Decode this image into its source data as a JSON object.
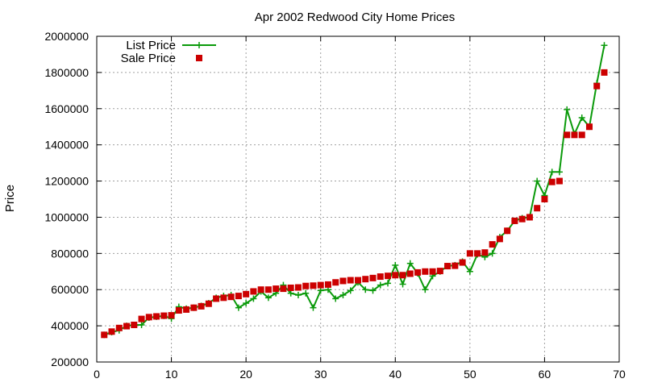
{
  "chart_data": {
    "type": "line",
    "title": "Apr 2002 Redwood City Home Prices",
    "xlabel": "",
    "ylabel": "Price",
    "xlim": [
      0,
      70
    ],
    "ylim": [
      200000,
      2000000
    ],
    "xticks": [
      0,
      10,
      20,
      30,
      40,
      50,
      60,
      70
    ],
    "yticks": [
      200000,
      400000,
      600000,
      800000,
      1000000,
      1200000,
      1400000,
      1600000,
      1800000,
      2000000
    ],
    "grid": true,
    "legend_position": "top-left",
    "series": [
      {
        "name": "List Price",
        "style": "line+cross",
        "color": "#0a9a0a",
        "x": [
          1,
          2,
          3,
          4,
          5,
          6,
          7,
          8,
          9,
          10,
          11,
          12,
          13,
          14,
          15,
          16,
          17,
          18,
          19,
          20,
          21,
          22,
          23,
          24,
          25,
          26,
          27,
          28,
          29,
          30,
          31,
          32,
          33,
          34,
          35,
          36,
          37,
          38,
          39,
          40,
          41,
          42,
          43,
          44,
          45,
          46,
          47,
          48,
          49,
          50,
          51,
          52,
          53,
          54,
          55,
          56,
          57,
          58,
          59,
          60,
          61,
          62,
          63,
          64,
          65,
          66,
          67,
          68
        ],
        "y": [
          350000,
          365000,
          375000,
          400000,
          405000,
          405000,
          445000,
          450000,
          455000,
          440000,
          505000,
          495000,
          500000,
          510000,
          525000,
          555000,
          565000,
          570000,
          500000,
          525000,
          550000,
          590000,
          555000,
          580000,
          625000,
          580000,
          570000,
          580000,
          500000,
          595000,
          600000,
          550000,
          570000,
          595000,
          640000,
          600000,
          595000,
          625000,
          635000,
          735000,
          630000,
          745000,
          690000,
          600000,
          675000,
          700000,
          730000,
          735000,
          755000,
          700000,
          795000,
          780000,
          800000,
          890000,
          925000,
          980000,
          995000,
          1000000,
          1200000,
          1120000,
          1250000,
          1250000,
          1595000,
          1460000,
          1550000,
          1500000,
          1740000,
          1950000
        ]
      },
      {
        "name": "Sale Price",
        "style": "square",
        "color": "#cc0000",
        "x": [
          1,
          2,
          3,
          4,
          5,
          6,
          7,
          8,
          9,
          10,
          11,
          12,
          13,
          14,
          15,
          16,
          17,
          18,
          19,
          20,
          21,
          22,
          23,
          24,
          25,
          26,
          27,
          28,
          29,
          30,
          31,
          32,
          33,
          34,
          35,
          36,
          37,
          38,
          39,
          40,
          41,
          42,
          43,
          44,
          45,
          46,
          47,
          48,
          49,
          50,
          51,
          52,
          53,
          54,
          55,
          56,
          57,
          58,
          59,
          60,
          61,
          62,
          63,
          64,
          65,
          66,
          67,
          68
        ],
        "y": [
          350000,
          368000,
          388000,
          398000,
          405000,
          438000,
          448000,
          452000,
          456000,
          458000,
          485000,
          490000,
          500000,
          508000,
          522000,
          550000,
          555000,
          560000,
          565000,
          575000,
          590000,
          600000,
          600000,
          605000,
          605000,
          610000,
          612000,
          620000,
          622000,
          625000,
          628000,
          640000,
          648000,
          652000,
          652000,
          658000,
          664000,
          672000,
          676000,
          680000,
          680000,
          688000,
          695000,
          700000,
          700000,
          703000,
          730000,
          732000,
          750000,
          800000,
          800000,
          805000,
          850000,
          880000,
          925000,
          980000,
          990000,
          1000000,
          1050000,
          1100000,
          1195000,
          1200000,
          1455000,
          1455000,
          1455000,
          1500000,
          1725000,
          1800000
        ]
      }
    ]
  }
}
